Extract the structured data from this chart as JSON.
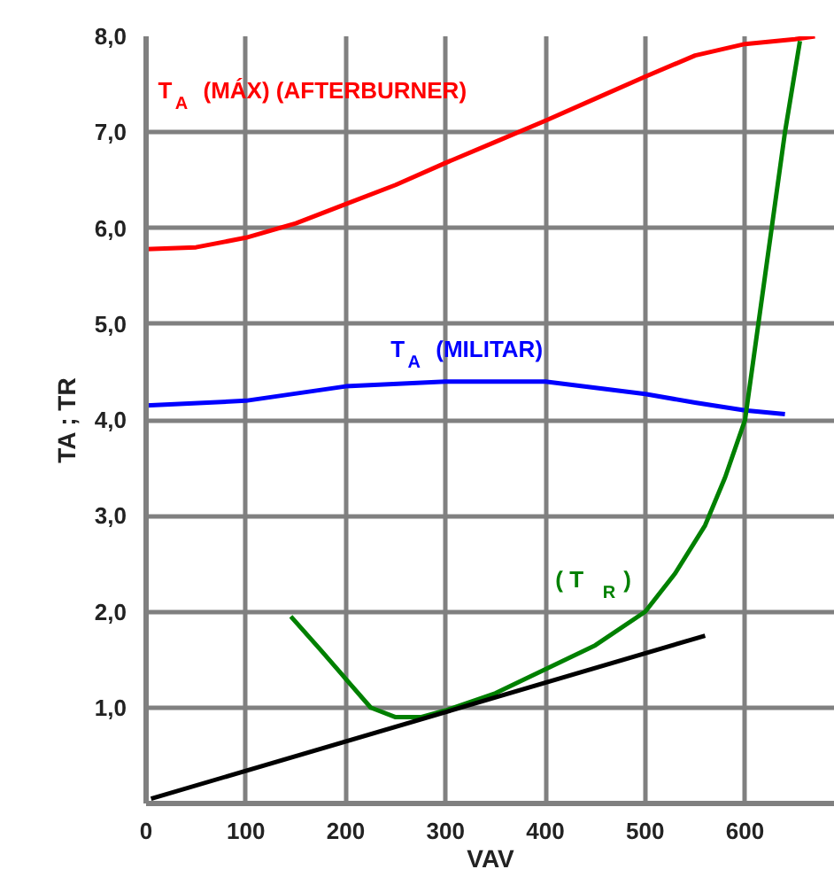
{
  "chart_data": {
    "type": "line",
    "xlabel": "VAV",
    "ylabel": "TA ; TR",
    "xlim": [
      0,
      690
    ],
    "ylim": [
      0,
      8
    ],
    "xticks": [
      0,
      100,
      200,
      300,
      400,
      500,
      600
    ],
    "yticks": [
      {
        "value": 1,
        "label": "1,0"
      },
      {
        "value": 2,
        "label": "2,0"
      },
      {
        "value": 3,
        "label": "3,0"
      },
      {
        "value": 4,
        "label": "4,0"
      },
      {
        "value": 5,
        "label": "5,0"
      },
      {
        "value": 6,
        "label": "6,0"
      },
      {
        "value": 7,
        "label": "7,0"
      },
      {
        "value": 8,
        "label": "8,0"
      }
    ],
    "grid": true,
    "marker": "none",
    "line_style": "solid",
    "series": [
      {
        "name": "T$_{A}$  (MÁX)    (AFTERBURNER)",
        "color": "#ff0000",
        "x": [
          0,
          50,
          100,
          150,
          200,
          250,
          300,
          350,
          400,
          450,
          500,
          550,
          600,
          650,
          670
        ],
        "values": [
          5.78,
          5.8,
          5.9,
          6.05,
          6.25,
          6.45,
          6.68,
          6.9,
          7.12,
          7.35,
          7.58,
          7.8,
          7.92,
          7.97,
          8.0
        ]
      },
      {
        "name": "T$_{A}$  (MILITAR)",
        "color": "#0000ff",
        "x": [
          0,
          100,
          200,
          300,
          400,
          500,
          550,
          600,
          640
        ],
        "values": [
          4.15,
          4.2,
          4.35,
          4.4,
          4.4,
          4.27,
          4.18,
          4.1,
          4.06
        ]
      },
      {
        "name": "( T$_{R}$ )",
        "color": "#008000",
        "x": [
          145,
          175,
          200,
          225,
          250,
          275,
          300,
          350,
          400,
          450,
          500,
          530,
          560,
          580,
          600,
          620,
          640,
          655
        ],
        "values": [
          1.95,
          1.6,
          1.3,
          1.0,
          0.9,
          0.9,
          0.97,
          1.15,
          1.4,
          1.65,
          2.0,
          2.4,
          2.9,
          3.4,
          4.0,
          5.5,
          7.0,
          7.95
        ]
      },
      {
        "color": "#000000",
        "x": [
          5,
          560
        ],
        "values": [
          0.05,
          1.75
        ]
      }
    ]
  }
}
